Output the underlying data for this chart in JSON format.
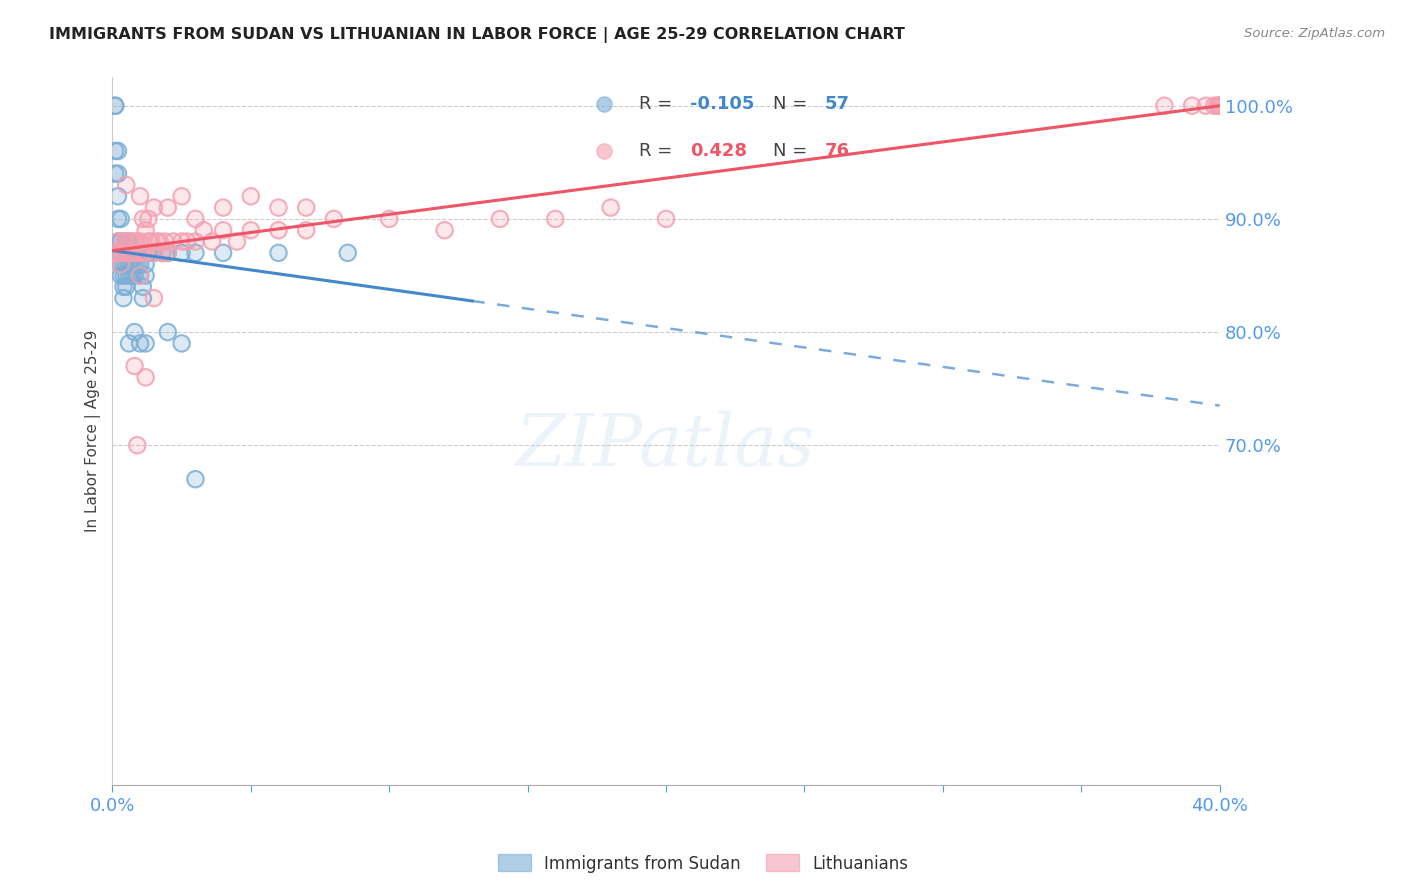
{
  "title": "IMMIGRANTS FROM SUDAN VS LITHUANIAN IN LABOR FORCE | AGE 25-29 CORRELATION CHART",
  "source": "Source: ZipAtlas.com",
  "ylabel": "In Labor Force | Age 25-29",
  "legend_labels": [
    "Immigrants from Sudan",
    "Lithuanians"
  ],
  "legend_R": [
    -0.105,
    0.428
  ],
  "legend_N": [
    57,
    76
  ],
  "blue_color": "#7aaed6",
  "pink_color": "#f4a0b0",
  "trend_blue": "#4488cc",
  "trend_pink": "#ee5566",
  "axis_color": "#5599EE",
  "xlim": [
    0.0,
    0.4
  ],
  "ylim": [
    0.4,
    1.025
  ],
  "xticks": [
    0.0,
    0.05,
    0.1,
    0.15,
    0.2,
    0.25,
    0.3,
    0.35,
    0.4
  ],
  "yticks_right": [
    0.7,
    0.8,
    0.9,
    1.0
  ],
  "blue_x": [
    0.001,
    0.001,
    0.001,
    0.001,
    0.002,
    0.002,
    0.002,
    0.002,
    0.002,
    0.003,
    0.003,
    0.003,
    0.003,
    0.003,
    0.004,
    0.004,
    0.004,
    0.004,
    0.005,
    0.005,
    0.005,
    0.005,
    0.005,
    0.006,
    0.006,
    0.006,
    0.006,
    0.007,
    0.007,
    0.007,
    0.008,
    0.008,
    0.008,
    0.009,
    0.009,
    0.01,
    0.01,
    0.011,
    0.011,
    0.012,
    0.012,
    0.013,
    0.015,
    0.018,
    0.02,
    0.025,
    0.03,
    0.04,
    0.06,
    0.085,
    0.01,
    0.006,
    0.008,
    0.012,
    0.02,
    0.025,
    0.03
  ],
  "blue_y": [
    1.0,
    1.0,
    0.96,
    0.94,
    0.96,
    0.94,
    0.92,
    0.9,
    0.88,
    0.9,
    0.88,
    0.87,
    0.86,
    0.85,
    0.86,
    0.85,
    0.84,
    0.83,
    0.88,
    0.87,
    0.86,
    0.85,
    0.84,
    0.88,
    0.87,
    0.86,
    0.85,
    0.87,
    0.86,
    0.85,
    0.87,
    0.86,
    0.85,
    0.87,
    0.86,
    0.86,
    0.85,
    0.84,
    0.83,
    0.86,
    0.85,
    0.87,
    0.87,
    0.87,
    0.87,
    0.87,
    0.87,
    0.87,
    0.87,
    0.87,
    0.79,
    0.79,
    0.8,
    0.79,
    0.8,
    0.79,
    0.67
  ],
  "pink_x": [
    0.001,
    0.002,
    0.002,
    0.003,
    0.003,
    0.004,
    0.004,
    0.005,
    0.005,
    0.006,
    0.006,
    0.007,
    0.007,
    0.008,
    0.008,
    0.009,
    0.009,
    0.01,
    0.01,
    0.011,
    0.011,
    0.012,
    0.012,
    0.013,
    0.013,
    0.014,
    0.015,
    0.016,
    0.017,
    0.018,
    0.019,
    0.02,
    0.022,
    0.025,
    0.027,
    0.03,
    0.033,
    0.036,
    0.04,
    0.045,
    0.05,
    0.06,
    0.07,
    0.08,
    0.1,
    0.12,
    0.14,
    0.16,
    0.18,
    0.2,
    0.005,
    0.01,
    0.015,
    0.02,
    0.025,
    0.03,
    0.04,
    0.05,
    0.06,
    0.07,
    0.01,
    0.015,
    0.008,
    0.012,
    0.009,
    0.38,
    0.39,
    0.395,
    0.398,
    0.399,
    0.4,
    0.4,
    0.4,
    0.4,
    0.4,
    0.4
  ],
  "pink_y": [
    0.87,
    0.88,
    0.87,
    0.86,
    0.87,
    0.87,
    0.88,
    0.87,
    0.88,
    0.88,
    0.87,
    0.88,
    0.87,
    0.87,
    0.88,
    0.87,
    0.88,
    0.87,
    0.88,
    0.87,
    0.9,
    0.87,
    0.89,
    0.88,
    0.9,
    0.88,
    0.87,
    0.88,
    0.88,
    0.87,
    0.88,
    0.87,
    0.88,
    0.88,
    0.88,
    0.88,
    0.89,
    0.88,
    0.89,
    0.88,
    0.89,
    0.89,
    0.89,
    0.9,
    0.9,
    0.89,
    0.9,
    0.9,
    0.91,
    0.9,
    0.93,
    0.92,
    0.91,
    0.91,
    0.92,
    0.9,
    0.91,
    0.92,
    0.91,
    0.91,
    0.85,
    0.83,
    0.77,
    0.76,
    0.7,
    1.0,
    1.0,
    1.0,
    1.0,
    1.0,
    1.0,
    1.0,
    1.0,
    1.0,
    1.0,
    1.0
  ]
}
